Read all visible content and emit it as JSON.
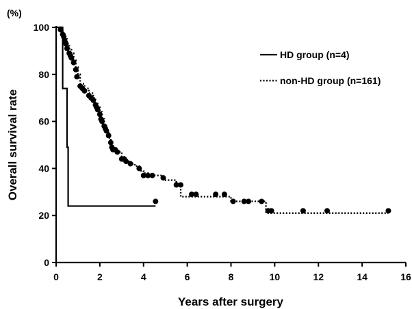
{
  "chart_data": {
    "type": "line",
    "subtype": "kaplan-meier survival curve",
    "title": "",
    "xlabel": "Years after surgery",
    "ylabel": "Overall survival rate",
    "y_unit_label": "(%)",
    "xlim": [
      0,
      16
    ],
    "ylim": [
      0,
      100
    ],
    "x_ticks": [
      "0",
      "2",
      "4",
      "6",
      "8",
      "10",
      "12",
      "14",
      "16"
    ],
    "y_ticks": [
      "0",
      "20",
      "40",
      "60",
      "80",
      "100"
    ],
    "grid": false,
    "legend_position": "top-right",
    "series": [
      {
        "name": "HD group (n=4)",
        "line_style": "solid",
        "color": "#000000",
        "steps": [
          [
            0,
            100
          ],
          [
            0.3,
            100
          ],
          [
            0.3,
            74
          ],
          [
            0.5,
            74
          ],
          [
            0.5,
            49
          ],
          [
            0.55,
            49
          ],
          [
            0.55,
            24
          ],
          [
            4.55,
            24
          ]
        ]
      },
      {
        "name": "non-HD group (n=161)",
        "line_style": "dotted",
        "color": "#000000",
        "steps": [
          [
            0,
            100
          ],
          [
            0.2,
            99
          ],
          [
            0.3,
            97
          ],
          [
            0.4,
            95
          ],
          [
            0.5,
            93
          ],
          [
            0.6,
            91
          ],
          [
            0.7,
            89
          ],
          [
            0.8,
            86
          ],
          [
            0.9,
            83
          ],
          [
            1.0,
            80
          ],
          [
            1.1,
            76
          ],
          [
            1.3,
            74
          ],
          [
            1.5,
            72
          ],
          [
            1.7,
            70
          ],
          [
            1.8,
            68
          ],
          [
            1.9,
            66
          ],
          [
            2.0,
            64
          ],
          [
            2.1,
            61
          ],
          [
            2.2,
            58
          ],
          [
            2.3,
            56
          ],
          [
            2.4,
            53
          ],
          [
            2.5,
            50
          ],
          [
            2.6,
            48
          ],
          [
            2.8,
            47
          ],
          [
            3.0,
            45
          ],
          [
            3.2,
            43
          ],
          [
            3.4,
            42
          ],
          [
            3.6,
            41
          ],
          [
            3.8,
            39
          ],
          [
            4.0,
            38
          ],
          [
            4.2,
            37
          ],
          [
            4.6,
            37
          ],
          [
            4.9,
            35
          ],
          [
            5.5,
            33
          ],
          [
            5.7,
            28
          ],
          [
            8.0,
            26
          ],
          [
            9.0,
            26
          ],
          [
            9.6,
            21
          ],
          [
            15.2,
            21
          ]
        ],
        "censor_points": [
          [
            0.2,
            99
          ],
          [
            0.3,
            97
          ],
          [
            0.35,
            96
          ],
          [
            0.4,
            94
          ],
          [
            0.45,
            93
          ],
          [
            0.5,
            91
          ],
          [
            0.6,
            89
          ],
          [
            0.65,
            88
          ],
          [
            0.7,
            87
          ],
          [
            0.8,
            85
          ],
          [
            0.9,
            82
          ],
          [
            0.95,
            79
          ],
          [
            1.1,
            75
          ],
          [
            1.2,
            74
          ],
          [
            1.3,
            73
          ],
          [
            1.5,
            71
          ],
          [
            1.6,
            70
          ],
          [
            1.7,
            69
          ],
          [
            1.8,
            67
          ],
          [
            1.85,
            66
          ],
          [
            1.9,
            65
          ],
          [
            2.0,
            63
          ],
          [
            2.05,
            61
          ],
          [
            2.1,
            60
          ],
          [
            2.2,
            58
          ],
          [
            2.25,
            57
          ],
          [
            2.3,
            56
          ],
          [
            2.4,
            54
          ],
          [
            2.5,
            51
          ],
          [
            2.55,
            49
          ],
          [
            2.6,
            48
          ],
          [
            2.7,
            48
          ],
          [
            2.8,
            47
          ],
          [
            3.0,
            44
          ],
          [
            3.1,
            44
          ],
          [
            3.2,
            43
          ],
          [
            3.4,
            42
          ],
          [
            3.8,
            40
          ],
          [
            4.0,
            37
          ],
          [
            4.2,
            37
          ],
          [
            4.4,
            37
          ],
          [
            4.9,
            36
          ],
          [
            5.5,
            33
          ],
          [
            5.7,
            33
          ],
          [
            6.2,
            29
          ],
          [
            6.4,
            29
          ],
          [
            7.3,
            29
          ],
          [
            7.7,
            29
          ],
          [
            8.1,
            26
          ],
          [
            8.6,
            26
          ],
          [
            8.8,
            26
          ],
          [
            9.4,
            26
          ],
          [
            9.7,
            22
          ],
          [
            9.85,
            22
          ],
          [
            11.3,
            22
          ],
          [
            12.4,
            22
          ],
          [
            15.2,
            22
          ],
          [
            4.55,
            26
          ]
        ]
      }
    ]
  }
}
